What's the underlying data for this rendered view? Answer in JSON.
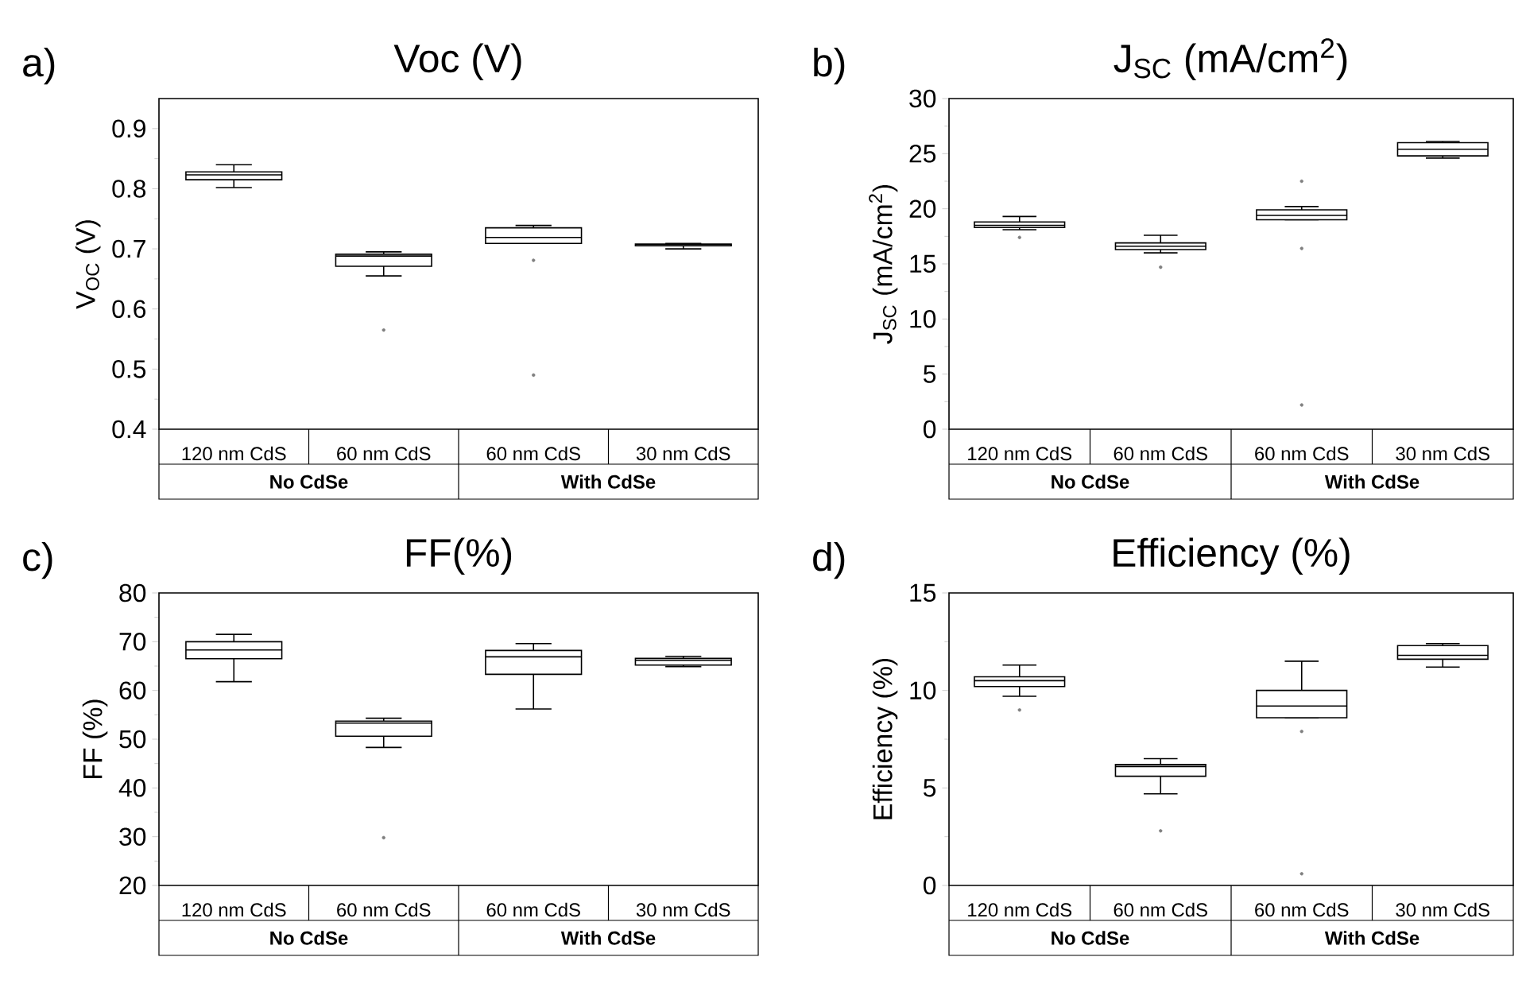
{
  "chart_data": [
    {
      "type": "box",
      "title": "Voc (V)",
      "ylabel": "V$_{OC}$ (V)",
      "categories": [
        "120 nm CdS",
        "60 nm CdS",
        "60 nm CdS",
        "30 nm CdS"
      ],
      "ylim": [
        0.4,
        0.95
      ],
      "yticks": [
        0.4,
        0.5,
        0.6,
        0.7,
        0.8,
        0.9
      ],
      "annotations": [
        "a)",
        "No CdSe",
        "With CdSe"
      ],
      "boxes": [
        {
          "low": 0.802,
          "q1": 0.815,
          "median": 0.823,
          "q3": 0.828,
          "high": 0.84
        },
        {
          "low": 0.655,
          "q1": 0.671,
          "median": 0.688,
          "q3": 0.691,
          "high": 0.695,
          "outliers": [
            0.565
          ]
        },
        {
          "low": 0.709,
          "q1": 0.709,
          "median": 0.719,
          "q3": 0.735,
          "high": 0.739,
          "outliers": [
            0.681,
            0.49
          ]
        },
        {
          "low": 0.7,
          "q1": 0.705,
          "median": 0.707,
          "q3": 0.708,
          "high": 0.709
        }
      ]
    },
    {
      "type": "box",
      "title": "J$_{SC}$ (mA/cm$^{2}$)",
      "ylabel": "J$_{SC}$ (mA/cm$^{2}$)",
      "categories": [
        "120 nm CdS",
        "60 nm CdS",
        "60 nm CdS",
        "30 nm CdS"
      ],
      "ylim": [
        0,
        30
      ],
      "yticks": [
        0,
        5,
        10,
        15,
        20,
        25,
        30
      ],
      "annotations": [
        "b)",
        "No CdSe",
        "With CdSe"
      ],
      "boxes": [
        {
          "low": 18.1,
          "q1": 18.3,
          "median": 18.5,
          "q3": 18.8,
          "high": 19.3,
          "outliers": [
            17.4
          ]
        },
        {
          "low": 16.0,
          "q1": 16.3,
          "median": 16.6,
          "q3": 16.9,
          "high": 17.6,
          "outliers": [
            14.7
          ]
        },
        {
          "low": 19.0,
          "q1": 19.0,
          "median": 19.4,
          "q3": 19.9,
          "high": 20.2,
          "outliers": [
            22.5,
            16.4,
            2.2
          ]
        },
        {
          "low": 24.6,
          "q1": 24.8,
          "median": 25.4,
          "q3": 26.0,
          "high": 26.1
        }
      ]
    },
    {
      "type": "box",
      "title": "FF(%)",
      "ylabel": "FF (%)",
      "categories": [
        "120 nm CdS",
        "60 nm CdS",
        "60 nm CdS",
        "30 nm CdS"
      ],
      "ylim": [
        20,
        80
      ],
      "yticks": [
        20,
        30,
        40,
        50,
        60,
        70,
        80
      ],
      "annotations": [
        "c)",
        "No CdSe",
        "With CdSe"
      ],
      "boxes": [
        {
          "low": 61.8,
          "q1": 66.5,
          "median": 68.3,
          "q3": 70.0,
          "high": 71.5
        },
        {
          "low": 48.3,
          "q1": 50.6,
          "median": 53.3,
          "q3": 53.7,
          "high": 54.3,
          "outliers": [
            29.8
          ]
        },
        {
          "low": 56.2,
          "q1": 63.3,
          "median": 66.9,
          "q3": 68.2,
          "high": 69.6
        },
        {
          "low": 64.9,
          "q1": 65.2,
          "median": 66.2,
          "q3": 66.6,
          "high": 67.0
        }
      ]
    },
    {
      "type": "box",
      "title": "Efficiency (%)",
      "ylabel": "Efficiency (%)",
      "categories": [
        "120 nm CdS",
        "60 nm CdS",
        "60 nm CdS",
        "30 nm CdS"
      ],
      "ylim": [
        0,
        15
      ],
      "yticks": [
        0,
        5,
        10,
        15
      ],
      "annotations": [
        "d)",
        "No CdSe",
        "With CdSe"
      ],
      "boxes": [
        {
          "low": 9.7,
          "q1": 10.2,
          "median": 10.5,
          "q3": 10.7,
          "high": 11.3,
          "outliers": [
            9.0
          ]
        },
        {
          "low": 4.7,
          "q1": 5.6,
          "median": 6.1,
          "q3": 6.2,
          "high": 6.5,
          "outliers": [
            2.8
          ]
        },
        {
          "low": 8.6,
          "q1": 8.6,
          "median": 9.2,
          "q3": 10.0,
          "high": 11.5,
          "outliers": [
            7.9,
            0.6
          ]
        },
        {
          "low": 11.2,
          "q1": 11.6,
          "median": 11.8,
          "q3": 12.3,
          "high": 12.4
        }
      ]
    }
  ]
}
